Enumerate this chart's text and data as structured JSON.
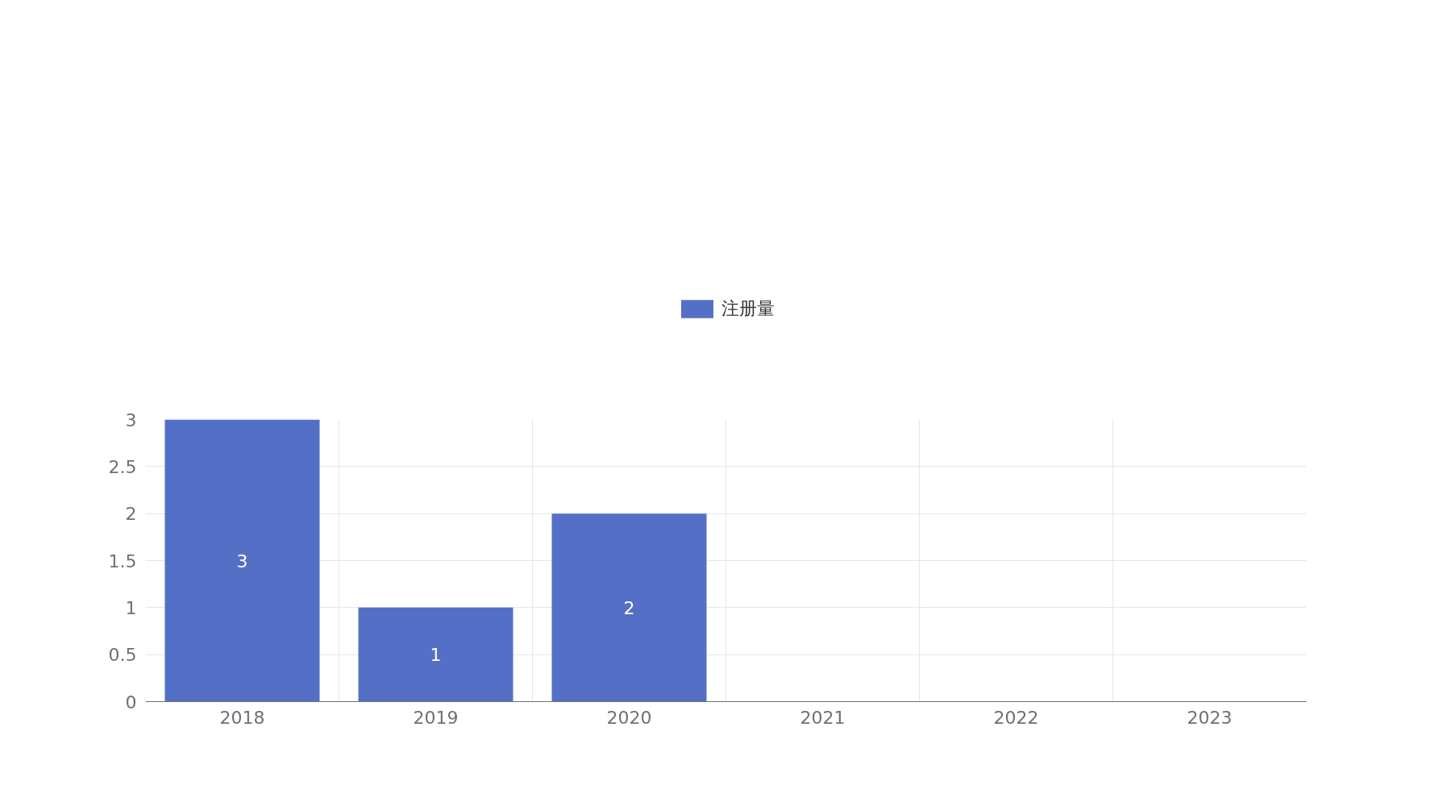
{
  "chart_data": {
    "type": "bar",
    "categories": [
      "2018",
      "2019",
      "2020",
      "2021",
      "2022",
      "2023"
    ],
    "series": [
      {
        "name": "注册量",
        "color": "#5470c6",
        "values": [
          3,
          1,
          2,
          0,
          0,
          0
        ],
        "value_labels": [
          "3",
          "1",
          "2",
          null,
          null,
          null
        ]
      }
    ],
    "ylim": [
      0,
      3
    ],
    "yticks": [
      0,
      0.5,
      1,
      1.5,
      2,
      2.5,
      3
    ],
    "grid": true,
    "legend": "top"
  }
}
